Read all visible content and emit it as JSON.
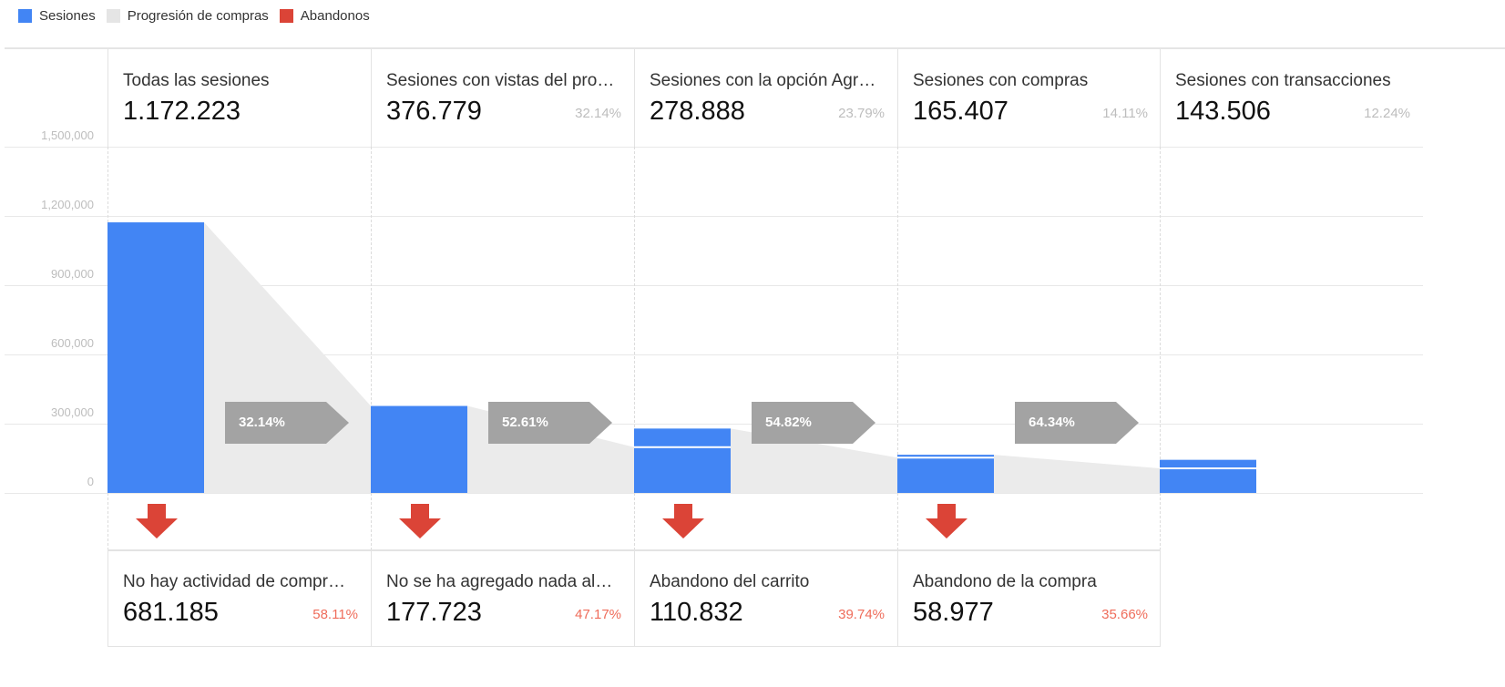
{
  "legend": [
    {
      "label": "Sesiones",
      "color": "#4285f4"
    },
    {
      "label": "Progresión de compras",
      "color": "#e5e5e5"
    },
    {
      "label": "Abandonos",
      "color": "#db4437"
    }
  ],
  "chart_data": {
    "type": "bar",
    "ylim": [
      0,
      1500000
    ],
    "y_ticks": [
      "1,500,000",
      "1,200,000",
      "900,000",
      "600,000",
      "300,000",
      "0"
    ],
    "y_tick_values": [
      1500000,
      1200000,
      900000,
      600000,
      300000,
      0
    ],
    "grid": true,
    "legend_position": "top-left",
    "stages": [
      {
        "name": "Todas las sesiones",
        "value_label": "1.172.223",
        "value": 1172223,
        "pct": ""
      },
      {
        "name": "Sesiones con vistas del pro…",
        "value_label": "376.779",
        "value": 376779,
        "pct": "32.14%"
      },
      {
        "name": "Sesiones con la opción Agr…",
        "value_label": "278.888",
        "value": 278888,
        "pct": "23.79%"
      },
      {
        "name": "Sesiones con compras",
        "value_label": "165.407",
        "value": 165407,
        "pct": "14.11%"
      },
      {
        "name": "Sesiones con transacciones",
        "value_label": "143.506",
        "value": 143506,
        "pct": "12.24%"
      }
    ],
    "progression": [
      {
        "label": "32.14%",
        "rate": 0.3214
      },
      {
        "label": "52.61%",
        "rate": 0.5261
      },
      {
        "label": "54.82%",
        "rate": 0.5482
      },
      {
        "label": "64.34%",
        "rate": 0.6434
      }
    ],
    "abandonments": [
      {
        "name": "No hay actividad de compr…",
        "value_label": "681.185",
        "pct": "58.11%"
      },
      {
        "name": "No se ha agregado nada al …",
        "value_label": "177.723",
        "pct": "47.17%"
      },
      {
        "name": "Abandono del carrito",
        "value_label": "110.832",
        "pct": "39.74%"
      },
      {
        "name": "Abandono de la compra",
        "value_label": "58.977",
        "pct": "35.66%"
      }
    ]
  }
}
